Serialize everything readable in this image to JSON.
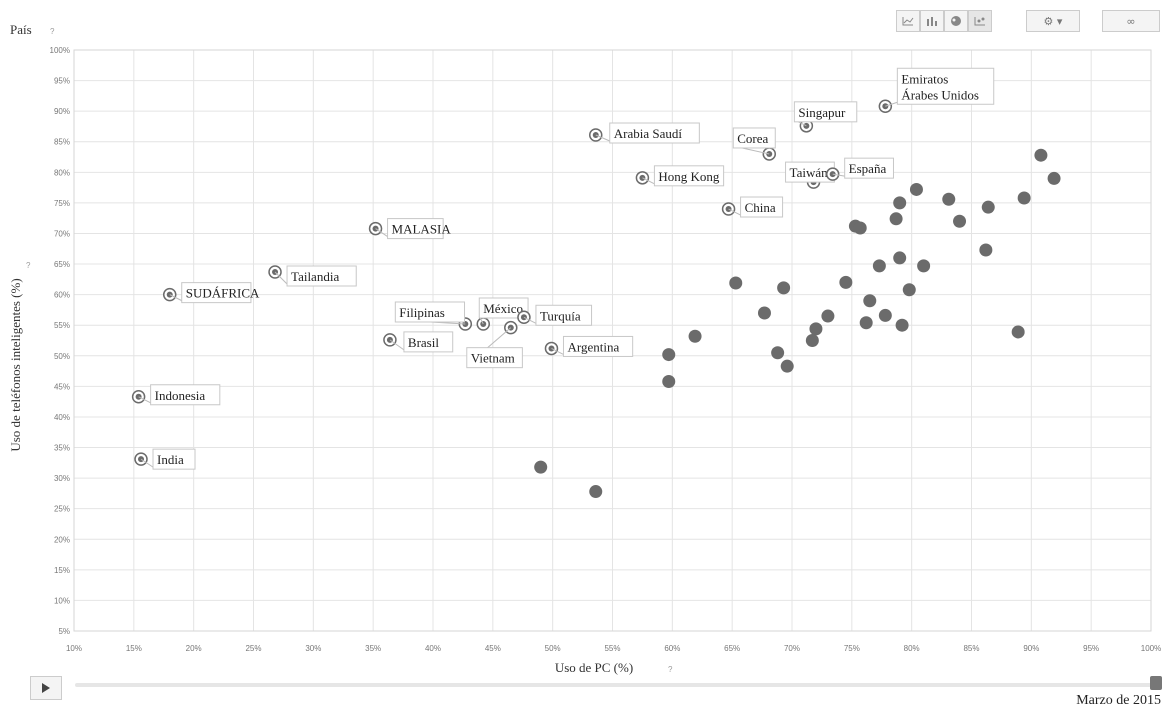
{
  "header": {
    "selector_label": "País",
    "help_mark": "?"
  },
  "toolbar": {
    "chart_icons": [
      "line-chart-icon",
      "bar-chart-icon",
      "map-icon",
      "bubble-chart-icon"
    ],
    "settings_icon": "gear-icon",
    "link_icon": "link-icon"
  },
  "timeline": {
    "date_label": "Marzo de 2015",
    "position": 1.0
  },
  "chart_data": {
    "type": "scatter",
    "xlabel": "Uso de PC (%)",
    "ylabel": "Uso de teléfonos inteligentes (%)",
    "xlim": [
      10,
      100
    ],
    "ylim": [
      5,
      100
    ],
    "x_ticks": [
      "10%",
      "15%",
      "20%",
      "25%",
      "30%",
      "35%",
      "40%",
      "45%",
      "50%",
      "55%",
      "60%",
      "65%",
      "70%",
      "75%",
      "80%",
      "85%",
      "90%",
      "95%",
      "100%"
    ],
    "y_ticks": [
      "5%",
      "10%",
      "15%",
      "20%",
      "25%",
      "30%",
      "35%",
      "40%",
      "45%",
      "50%",
      "55%",
      "60%",
      "65%",
      "70%",
      "75%",
      "80%",
      "85%",
      "90%",
      "95%",
      "100%"
    ],
    "grid": true,
    "labeled_points": [
      {
        "label": "Emiratos Árabes Unidos",
        "x": 77.8,
        "y": 90.8
      },
      {
        "label": "Singapur",
        "x": 71.2,
        "y": 87.6
      },
      {
        "label": "Arabia Saudí",
        "x": 53.6,
        "y": 86.1
      },
      {
        "label": "Corea",
        "x": 68.1,
        "y": 83.0
      },
      {
        "label": "Taiwán",
        "x": 71.8,
        "y": 78.4
      },
      {
        "label": "España",
        "x": 73.4,
        "y": 79.7
      },
      {
        "label": "Hong Kong",
        "x": 57.5,
        "y": 79.1
      },
      {
        "label": "China",
        "x": 64.7,
        "y": 74.0
      },
      {
        "label": "MALASIA",
        "x": 35.2,
        "y": 70.8
      },
      {
        "label": "Tailandia",
        "x": 26.8,
        "y": 63.7
      },
      {
        "label": "SUDÁFRICA",
        "x": 18.0,
        "y": 60.0
      },
      {
        "label": "México",
        "x": 44.2,
        "y": 55.2
      },
      {
        "label": "Filipinas",
        "x": 42.7,
        "y": 55.2
      },
      {
        "label": "Turquía",
        "x": 47.6,
        "y": 56.3
      },
      {
        "label": "Vietnam",
        "x": 46.5,
        "y": 54.6
      },
      {
        "label": "Brasil",
        "x": 36.4,
        "y": 52.6
      },
      {
        "label": "Argentina",
        "x": 49.9,
        "y": 51.2
      },
      {
        "label": "Indonesia",
        "x": 15.4,
        "y": 43.3
      },
      {
        "label": "India",
        "x": 15.6,
        "y": 33.1
      }
    ],
    "other_points": [
      {
        "x": 90.8,
        "y": 82.8
      },
      {
        "x": 91.9,
        "y": 79.0
      },
      {
        "x": 80.4,
        "y": 77.2
      },
      {
        "x": 83.1,
        "y": 75.6
      },
      {
        "x": 86.4,
        "y": 74.3
      },
      {
        "x": 89.4,
        "y": 75.8
      },
      {
        "x": 79.0,
        "y": 75.0
      },
      {
        "x": 78.7,
        "y": 72.4
      },
      {
        "x": 84.0,
        "y": 72.0
      },
      {
        "x": 75.3,
        "y": 71.2
      },
      {
        "x": 75.7,
        "y": 70.9
      },
      {
        "x": 86.2,
        "y": 67.3
      },
      {
        "x": 79.0,
        "y": 66.0
      },
      {
        "x": 77.3,
        "y": 64.7
      },
      {
        "x": 81.0,
        "y": 64.7
      },
      {
        "x": 65.3,
        "y": 61.9
      },
      {
        "x": 74.5,
        "y": 62.0
      },
      {
        "x": 69.3,
        "y": 61.1
      },
      {
        "x": 79.8,
        "y": 60.8
      },
      {
        "x": 76.5,
        "y": 59.0
      },
      {
        "x": 67.7,
        "y": 57.0
      },
      {
        "x": 73.0,
        "y": 56.5
      },
      {
        "x": 77.8,
        "y": 56.6
      },
      {
        "x": 76.2,
        "y": 55.4
      },
      {
        "x": 79.2,
        "y": 55.0
      },
      {
        "x": 72.0,
        "y": 54.4
      },
      {
        "x": 61.9,
        "y": 53.2
      },
      {
        "x": 71.7,
        "y": 52.5
      },
      {
        "x": 88.9,
        "y": 53.9
      },
      {
        "x": 59.7,
        "y": 50.2
      },
      {
        "x": 68.8,
        "y": 50.5
      },
      {
        "x": 69.6,
        "y": 48.3
      },
      {
        "x": 59.7,
        "y": 45.8
      },
      {
        "x": 49.0,
        "y": 31.8
      },
      {
        "x": 53.6,
        "y": 27.8
      }
    ],
    "colors": {
      "point": "#6b6b6b",
      "labeled_fill": "#ffffff",
      "grid": "#e4e4e4"
    }
  }
}
